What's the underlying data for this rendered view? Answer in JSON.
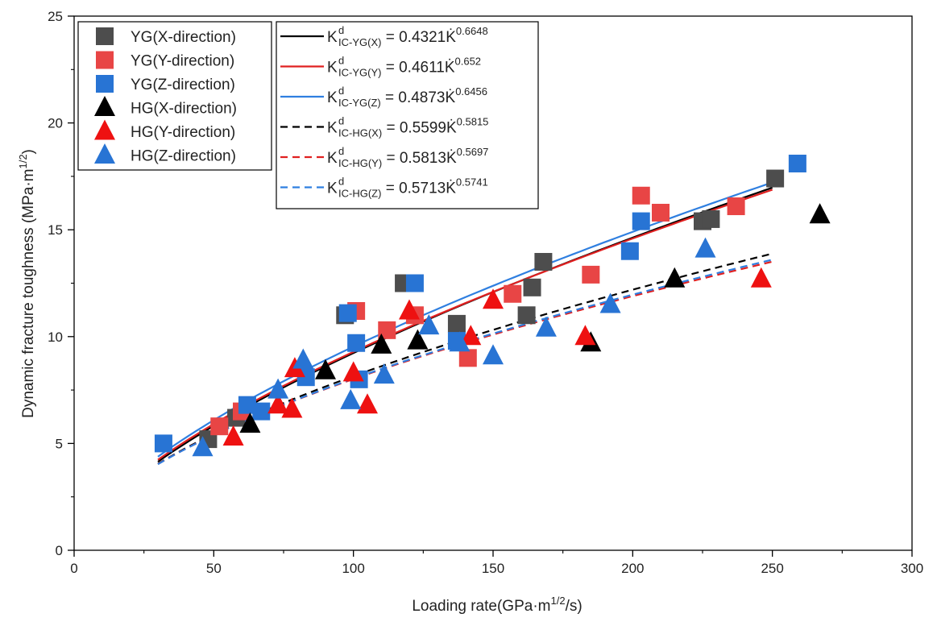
{
  "chart_data": {
    "type": "scatter",
    "title": "",
    "xlabel": {
      "main": "Loading rate(GPa·m",
      "sup": "1/2",
      "tail": "/s)"
    },
    "ylabel": {
      "main": "Dynamic fracture toughness (MPa·m",
      "sup": "1/2",
      "tail": ")"
    },
    "xlim": [
      0,
      300
    ],
    "ylim": [
      0,
      25
    ],
    "xticks": [
      0,
      50,
      100,
      150,
      200,
      250,
      300
    ],
    "yticks": [
      0,
      5,
      10,
      15,
      20,
      25
    ],
    "grid": false,
    "legend_position": "top-left",
    "series": [
      {
        "name": "YG(X-direction)",
        "marker": "square",
        "color": "#4d4d4d",
        "points": [
          [
            48,
            5.2
          ],
          [
            58,
            6.2
          ],
          [
            97,
            11
          ],
          [
            118,
            12.5
          ],
          [
            137,
            10.6
          ],
          [
            162,
            11
          ],
          [
            164,
            12.3
          ],
          [
            168,
            13.5
          ],
          [
            225,
            15.4
          ],
          [
            228,
            15.5
          ],
          [
            251,
            17.4
          ]
        ]
      },
      {
        "name": "YG(Y-direction)",
        "marker": "square",
        "color": "#e84545",
        "points": [
          [
            52,
            5.8
          ],
          [
            60,
            6.5
          ],
          [
            101,
            11.2
          ],
          [
            112,
            10.3
          ],
          [
            122,
            11
          ],
          [
            141,
            9
          ],
          [
            157,
            12
          ],
          [
            185,
            12.9
          ],
          [
            203,
            16.6
          ],
          [
            210,
            15.8
          ],
          [
            237,
            16.1
          ]
        ]
      },
      {
        "name": "YG(Z-direction)",
        "marker": "square",
        "color": "#2874d4",
        "points": [
          [
            32,
            5
          ],
          [
            62,
            6.8
          ],
          [
            67,
            6.5
          ],
          [
            83,
            8.1
          ],
          [
            98,
            11.1
          ],
          [
            101,
            9.7
          ],
          [
            102,
            8
          ],
          [
            122,
            12.5
          ],
          [
            137,
            9.8
          ],
          [
            199,
            14
          ],
          [
            203,
            15.4
          ],
          [
            259,
            18.1
          ]
        ]
      },
      {
        "name": "HG(X-direction)",
        "marker": "triangle",
        "color": "#000000",
        "points": [
          [
            63,
            5.9
          ],
          [
            90,
            8.4
          ],
          [
            110,
            9.6
          ],
          [
            123,
            9.8
          ],
          [
            185,
            9.7
          ],
          [
            215,
            12.7
          ],
          [
            267,
            15.7
          ]
        ]
      },
      {
        "name": "HG(Y-direction)",
        "marker": "triangle",
        "color": "#ee1111",
        "points": [
          [
            57,
            5.3
          ],
          [
            73,
            6.8
          ],
          [
            78,
            6.6
          ],
          [
            79,
            8.5
          ],
          [
            100,
            8.3
          ],
          [
            105,
            6.8
          ],
          [
            120,
            11.2
          ],
          [
            142,
            10
          ],
          [
            150,
            11.7
          ],
          [
            183,
            10
          ],
          [
            246,
            12.7
          ]
        ]
      },
      {
        "name": "HG(Z-direction)",
        "marker": "triangle",
        "color": "#2874d4",
        "points": [
          [
            46,
            4.8
          ],
          [
            73,
            7.5
          ],
          [
            82,
            8.9
          ],
          [
            99,
            7
          ],
          [
            111,
            8.2
          ],
          [
            127,
            10.5
          ],
          [
            138,
            9.7
          ],
          [
            150,
            9.1
          ],
          [
            169,
            10.4
          ],
          [
            192,
            11.5
          ],
          [
            226,
            14.1
          ]
        ]
      }
    ],
    "fits": [
      {
        "label_base": "K",
        "label_sup": "d",
        "label_sub": "IC-YG(X)",
        "eq_text": " = 0.4321",
        "var": "K̇",
        "coef": 0.4321,
        "exponent_text": "0.6648",
        "exponent": 0.6648,
        "color": "#000000",
        "style": "solid",
        "x_range": [
          30,
          250
        ]
      },
      {
        "label_base": "K",
        "label_sup": "d",
        "label_sub": "IC-YG(Y)",
        "eq_text": " = 0.4611",
        "var": "K̇",
        "coef": 0.4611,
        "exponent_text": "0.652",
        "exponent": 0.652,
        "color": "#e02020",
        "style": "solid",
        "x_range": [
          30,
          250
        ]
      },
      {
        "label_base": "K",
        "label_sup": "d",
        "label_sub": "IC-YG(Z)",
        "eq_text": " = 0.4873",
        "var": "K̇",
        "coef": 0.4873,
        "exponent_text": "0.6456",
        "exponent": 0.6456,
        "color": "#2f7fe0",
        "style": "solid",
        "x_range": [
          30,
          250
        ]
      },
      {
        "label_base": "K",
        "label_sup": "d",
        "label_sub": "IC-HG(X)",
        "eq_text": " = 0.5599",
        "var": "K̇",
        "coef": 0.5599,
        "exponent_text": "0.5815",
        "exponent": 0.5815,
        "color": "#000000",
        "style": "dashed",
        "x_range": [
          30,
          250
        ]
      },
      {
        "label_base": "K",
        "label_sup": "d",
        "label_sub": "IC-HG(Y)",
        "eq_text": " = 0.5813",
        "var": "K̇",
        "coef": 0.5813,
        "exponent_text": "0.5697",
        "exponent": 0.5697,
        "color": "#e02020",
        "style": "dashed",
        "x_range": [
          30,
          250
        ]
      },
      {
        "label_base": "K",
        "label_sup": "d",
        "label_sub": "IC-HG(Z)",
        "eq_text": " = 0.5713",
        "var": "K̇",
        "coef": 0.5713,
        "exponent_text": "0.5741",
        "exponent": 0.5741,
        "color": "#2f7fe0",
        "style": "dashed",
        "x_range": [
          30,
          250
        ]
      }
    ]
  }
}
